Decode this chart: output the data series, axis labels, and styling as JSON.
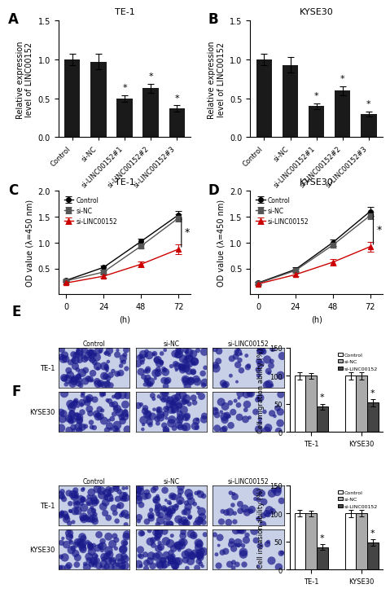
{
  "panel_A": {
    "title": "TE-1",
    "ylabel": "Relative expression\nlevel of LINC00152",
    "categories": [
      "Control",
      "si-NC",
      "si-LINC00152#1",
      "si-LINC00152#2",
      "si-LINC00152#3"
    ],
    "values": [
      1.0,
      0.97,
      0.5,
      0.63,
      0.37
    ],
    "errors": [
      0.07,
      0.1,
      0.04,
      0.06,
      0.04
    ],
    "ylim": [
      0,
      1.5
    ],
    "yticks": [
      0.0,
      0.5,
      1.0,
      1.5
    ],
    "bar_color": "#1a1a1a",
    "star_indices": [
      2,
      3,
      4
    ]
  },
  "panel_B": {
    "title": "KYSE30",
    "ylabel": "Relative expression\nlevel of LINC00152",
    "categories": [
      "Control",
      "si-NC",
      "si-LINC00152#1",
      "si-LINC00152#2",
      "si-LINC00152#3"
    ],
    "values": [
      1.0,
      0.93,
      0.4,
      0.6,
      0.3
    ],
    "errors": [
      0.07,
      0.1,
      0.04,
      0.06,
      0.03
    ],
    "ylim": [
      0,
      1.5
    ],
    "yticks": [
      0.0,
      0.5,
      1.0,
      1.5
    ],
    "bar_color": "#1a1a1a",
    "star_indices": [
      2,
      3,
      4
    ]
  },
  "panel_C": {
    "title": "TE-1",
    "ylabel": "OD value (λ=450 nm)",
    "timepoints": [
      0,
      24,
      48,
      72
    ],
    "xlabel_label": "(h)",
    "ylim": [
      0,
      2.0
    ],
    "yticks": [
      0.5,
      1.0,
      1.5,
      2.0
    ],
    "series_names": [
      "Control",
      "si-NC",
      "si-LINC00152"
    ],
    "series_values": [
      [
        0.27,
        0.52,
        1.02,
        1.53
      ],
      [
        0.26,
        0.43,
        0.93,
        1.47
      ],
      [
        0.22,
        0.35,
        0.58,
        0.87
      ]
    ],
    "series_errors": [
      [
        0.02,
        0.04,
        0.06,
        0.08
      ],
      [
        0.02,
        0.03,
        0.05,
        0.07
      ],
      [
        0.02,
        0.03,
        0.06,
        0.09
      ]
    ],
    "series_colors": [
      "#000000",
      "#555555",
      "#cc0000"
    ],
    "series_markers": [
      "o",
      "s",
      "^"
    ]
  },
  "panel_D": {
    "title": "KYSE30",
    "ylabel": "OD value (λ=450 nm)",
    "timepoints": [
      0,
      24,
      48,
      72
    ],
    "xlabel_label": "(h)",
    "ylim": [
      0,
      2.0
    ],
    "yticks": [
      0.5,
      1.0,
      1.5,
      2.0
    ],
    "series_names": [
      "Control",
      "si-NC",
      "si-LINC00152"
    ],
    "series_values": [
      [
        0.22,
        0.48,
        1.0,
        1.6
      ],
      [
        0.21,
        0.46,
        0.95,
        1.52
      ],
      [
        0.2,
        0.38,
        0.62,
        0.92
      ]
    ],
    "series_errors": [
      [
        0.02,
        0.04,
        0.06,
        0.08
      ],
      [
        0.02,
        0.03,
        0.05,
        0.07
      ],
      [
        0.02,
        0.03,
        0.06,
        0.09
      ]
    ],
    "series_colors": [
      "#000000",
      "#555555",
      "#cc0000"
    ],
    "series_markers": [
      "o",
      "s",
      "^"
    ]
  },
  "panel_E_bar": {
    "groups": [
      "TE-1",
      "KYSE30"
    ],
    "series_names": [
      "Control",
      "si-NC",
      "si-LINC00152"
    ],
    "series_values": [
      [
        100,
        100
      ],
      [
        100,
        100
      ],
      [
        45,
        52
      ]
    ],
    "series_errors": [
      [
        6,
        7
      ],
      [
        5,
        6
      ],
      [
        5,
        6
      ]
    ],
    "series_colors": [
      "#ffffff",
      "#aaaaaa",
      "#444444"
    ],
    "series_edgecolors": [
      "#000000",
      "#000000",
      "#000000"
    ],
    "ylabel": "Cell migration ability (%)",
    "ylim": [
      0,
      150
    ],
    "yticks": [
      0,
      50,
      100,
      150
    ]
  },
  "panel_F_bar": {
    "groups": [
      "TE-1",
      "KYSE30"
    ],
    "series_names": [
      "Control",
      "si-NC",
      "si-LINC00152"
    ],
    "series_values": [
      [
        100,
        100
      ],
      [
        100,
        100
      ],
      [
        40,
        48
      ]
    ],
    "series_errors": [
      [
        6,
        7
      ],
      [
        5,
        6
      ],
      [
        5,
        6
      ]
    ],
    "series_colors": [
      "#ffffff",
      "#aaaaaa",
      "#444444"
    ],
    "series_edgecolors": [
      "#000000",
      "#000000",
      "#000000"
    ],
    "ylabel": "Cell invasion ability (%)",
    "ylim": [
      0,
      150
    ],
    "yticks": [
      0,
      50,
      100,
      150
    ]
  },
  "bg_color": "#ffffff",
  "panel_labels_fontsize": 12,
  "axis_fontsize": 7,
  "title_fontsize": 8
}
